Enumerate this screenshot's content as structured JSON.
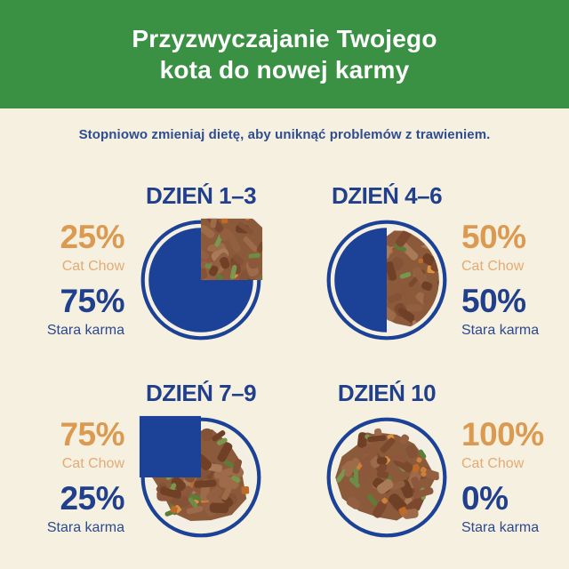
{
  "header": {
    "title_line1": "Przyzwyczajanie Twojego",
    "title_line2": "kota do nowej karmy"
  },
  "subtitle": "Stopniowo zmieniaj dietę, aby uniknąć problemów z trawieniem.",
  "labels": {
    "new_food": "Cat Chow",
    "old_food": "Stara karma"
  },
  "sections": [
    {
      "id": "day-1-3",
      "heading": "DZIEŃ 1–3",
      "new_pct": "25%",
      "old_pct": "75%",
      "new_value": 25,
      "old_value": 75,
      "labels_side": "left"
    },
    {
      "id": "day-4-6",
      "heading": "DZIEŃ 4–6",
      "new_pct": "50%",
      "old_pct": "50%",
      "new_value": 50,
      "old_value": 50,
      "labels_side": "right"
    },
    {
      "id": "day-7-9",
      "heading": "DZIEŃ 7–9",
      "new_pct": "75%",
      "old_pct": "25%",
      "new_value": 75,
      "old_value": 25,
      "labels_side": "left"
    },
    {
      "id": "day-10",
      "heading": "DZIEŃ 10",
      "new_pct": "100%",
      "old_pct": "0%",
      "new_value": 100,
      "old_value": 0,
      "labels_side": "right"
    }
  ],
  "colors": {
    "green": "#3a9143",
    "cream": "#f6f0e1",
    "navy": "#1c4297",
    "navy_text": "#203f8c",
    "orange": "#dc9a51",
    "orange_light": "#e3ab74",
    "food_bg": "#f4efe4",
    "food_base": "#8a5a3a",
    "food_meat": [
      "#925f41",
      "#7c482e",
      "#9e6b4a",
      "#845236",
      "#a87a58",
      "#6f3f26",
      "#8d573b"
    ],
    "food_carrot": [
      "#cf8038",
      "#dd9243",
      "#c06a2a"
    ],
    "food_bean": [
      "#6d8c46",
      "#5d7c38",
      "#79984e"
    ]
  },
  "chart_data": [
    {
      "type": "pie",
      "title": "DZIEŃ 1–3",
      "labels": [
        "Cat Chow",
        "Stara karma"
      ],
      "values": [
        25,
        75
      ],
      "annotations": [
        "25% Cat Chow",
        "75% Stara karma"
      ],
      "old_food_color": "#1c4297",
      "new_food_style": "food photo"
    },
    {
      "type": "pie",
      "title": "DZIEŃ 4–6",
      "labels": [
        "Cat Chow",
        "Stara karma"
      ],
      "values": [
        50,
        50
      ],
      "annotations": [
        "50% Cat Chow",
        "50% Stara karma"
      ],
      "old_food_color": "#1c4297",
      "new_food_style": "food photo"
    },
    {
      "type": "pie",
      "title": "DZIEŃ 7–9",
      "labels": [
        "Cat Chow",
        "Stara karma"
      ],
      "values": [
        75,
        25
      ],
      "annotations": [
        "75% Cat Chow",
        "25% Stara karma"
      ],
      "old_food_color": "#1c4297",
      "new_food_style": "food photo"
    },
    {
      "type": "pie",
      "title": "DZIEŃ 10",
      "labels": [
        "Cat Chow",
        "Stara karma"
      ],
      "values": [
        100,
        0
      ],
      "annotations": [
        "100% Cat Chow",
        "0% Stara karma"
      ],
      "old_food_color": "#1c4297",
      "new_food_style": "food photo"
    }
  ]
}
